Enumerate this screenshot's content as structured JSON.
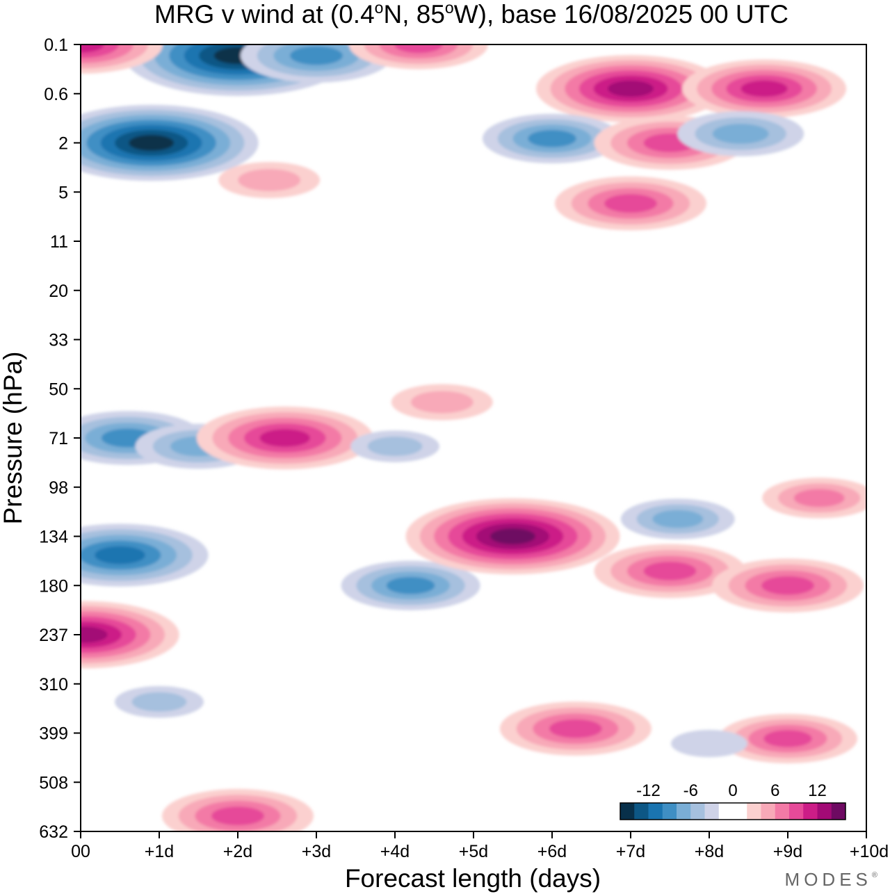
{
  "chart_data": {
    "type": "heatmap",
    "title": "MRG v wind at (0.4°N, 85°W),  base 16/08/2025  00 UTC",
    "title_parts": {
      "pre": "MRG v wind at (0.4",
      "deg1": "o",
      "mid": "N, 85",
      "deg2": "o",
      "post": "W),  base 16/08/2025  00 UTC"
    },
    "xlabel": "Forecast length (days)",
    "ylabel": "Pressure (hPa)",
    "x_ticks": [
      "00",
      "+1d",
      "+2d",
      "+3d",
      "+4d",
      "+5d",
      "+6d",
      "+7d",
      "+8d",
      "+9d",
      "+10d"
    ],
    "xlim": [
      0,
      10
    ],
    "y_ticks": [
      "0.1",
      "0.6",
      "2",
      "5",
      "11",
      "20",
      "33",
      "50",
      "71",
      "98",
      "134",
      "180",
      "237",
      "310",
      "399",
      "508",
      "632"
    ],
    "ylim_hpa": [
      0.1,
      632
    ],
    "colorbar": {
      "levels": [
        -16,
        -14,
        -12,
        -10,
        -8,
        -6,
        -4,
        -2,
        0,
        2,
        4,
        6,
        8,
        10,
        12,
        14,
        16
      ],
      "tick_labels": [
        "-12",
        "-6",
        "0",
        "6",
        "12"
      ],
      "tick_values": [
        -12,
        -6,
        0,
        6,
        12
      ],
      "colors": [
        "#08304a",
        "#0d5785",
        "#1a74b0",
        "#3f8fc4",
        "#7aaed6",
        "#a6c0de",
        "#cfd3e8",
        "#ffffff",
        "#ffffff",
        "#fbd0cf",
        "#f8a9b8",
        "#f37aa6",
        "#e64a99",
        "#cc1d87",
        "#a30a76",
        "#6e0a62"
      ]
    },
    "features": [
      {
        "day": 2.0,
        "level": 0.15,
        "value": -15
      },
      {
        "day": 0.9,
        "level": 2.0,
        "value": -14
      },
      {
        "day": 0.0,
        "level": 0.1,
        "value": 10
      },
      {
        "day": 3.0,
        "level": 0.15,
        "value": -9
      },
      {
        "day": 4.3,
        "level": 0.1,
        "value": 8
      },
      {
        "day": 7.0,
        "level": 0.5,
        "value": 12
      },
      {
        "day": 8.7,
        "level": 0.5,
        "value": 10
      },
      {
        "day": 6.0,
        "level": 1.8,
        "value": -8
      },
      {
        "day": 7.5,
        "level": 2.0,
        "value": 9
      },
      {
        "day": 8.4,
        "level": 1.6,
        "value": -7
      },
      {
        "day": 2.4,
        "level": 4.0,
        "value": 5
      },
      {
        "day": 7.0,
        "level": 6.0,
        "value": 9
      },
      {
        "day": 0.6,
        "level": 71,
        "value": -9
      },
      {
        "day": 1.5,
        "level": 75,
        "value": -7
      },
      {
        "day": 2.6,
        "level": 71,
        "value": 11
      },
      {
        "day": 4.6,
        "level": 55,
        "value": 5
      },
      {
        "day": 4.0,
        "level": 75,
        "value": -4
      },
      {
        "day": 0.5,
        "level": 150,
        "value": -11
      },
      {
        "day": 4.2,
        "level": 180,
        "value": -8
      },
      {
        "day": 5.5,
        "level": 134,
        "value": 14
      },
      {
        "day": 7.5,
        "level": 165,
        "value": 9
      },
      {
        "day": 9.0,
        "level": 180,
        "value": 9
      },
      {
        "day": 7.6,
        "level": 120,
        "value": -6
      },
      {
        "day": 9.4,
        "level": 105,
        "value": 6
      },
      {
        "day": 0.05,
        "level": 237,
        "value": 12
      },
      {
        "day": 2.0,
        "level": 590,
        "value": 9
      },
      {
        "day": 6.3,
        "level": 390,
        "value": 9
      },
      {
        "day": 9.0,
        "level": 410,
        "value": 8
      },
      {
        "day": 1.0,
        "level": 340,
        "value": -4
      },
      {
        "day": 8.0,
        "level": 420,
        "value": -3
      }
    ]
  },
  "branding": {
    "text": "MODES",
    "mark": "®"
  }
}
